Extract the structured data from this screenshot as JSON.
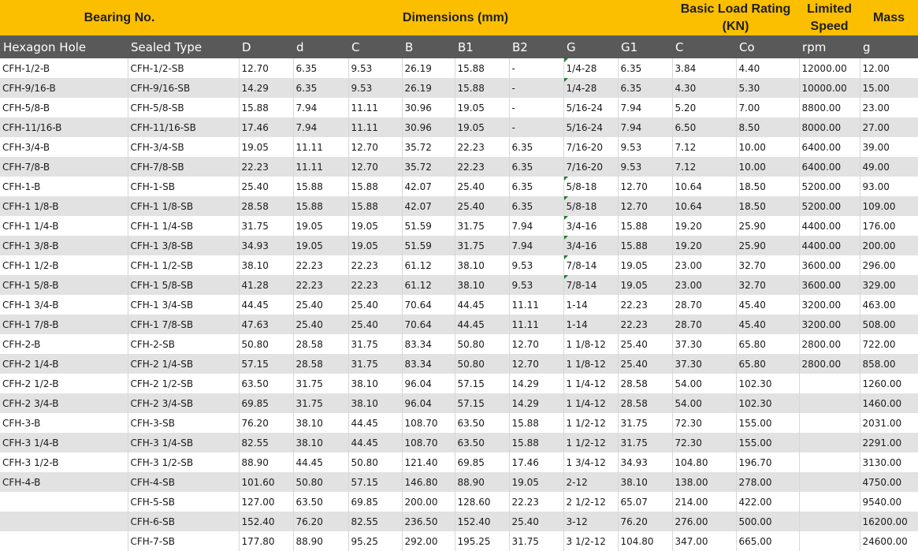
{
  "header": {
    "bearing_no": "Bearing No.",
    "dimensions": "Dimensions (mm)",
    "load_rating": "Basic Load Rating (KN)",
    "limited_speed": "Limited Speed",
    "mass": "Mass"
  },
  "columns": [
    "Hexagon Hole",
    "Sealed Type",
    "D",
    "d",
    "C",
    "B",
    "B1",
    "B2",
    "G",
    "G1",
    "C",
    "Co",
    "rpm",
    "g"
  ],
  "rows": [
    [
      "CFH-1/2-B",
      "CFH-1/2-SB",
      "12.70",
      "6.35",
      "9.53",
      "26.19",
      "15.88",
      "-",
      "1/4-28",
      "6.35",
      "3.84",
      "4.40",
      "12000.00",
      "12.00"
    ],
    [
      "CFH-9/16-B",
      "CFH-9/16-SB",
      "14.29",
      "6.35",
      "9.53",
      "26.19",
      "15.88",
      "-",
      "1/4-28",
      "6.35",
      "4.30",
      "5.30",
      "10000.00",
      "15.00"
    ],
    [
      "CFH-5/8-B",
      "CFH-5/8-SB",
      "15.88",
      "7.94",
      "11.11",
      "30.96",
      "19.05",
      "-",
      "5/16-24",
      "7.94",
      "5.20",
      "7.00",
      "8800.00",
      "23.00"
    ],
    [
      "CFH-11/16-B",
      "CFH-11/16-SB",
      "17.46",
      "7.94",
      "11.11",
      "30.96",
      "19.05",
      "-",
      "5/16-24",
      "7.94",
      "6.50",
      "8.50",
      "8000.00",
      "27.00"
    ],
    [
      "CFH-3/4-B",
      "CFH-3/4-SB",
      "19.05",
      "11.11",
      "12.70",
      "35.72",
      "22.23",
      "6.35",
      "7/16-20",
      "9.53",
      "7.12",
      "10.00",
      "6400.00",
      "39.00"
    ],
    [
      "CFH-7/8-B",
      "CFH-7/8-SB",
      "22.23",
      "11.11",
      "12.70",
      "35.72",
      "22.23",
      "6.35",
      "7/16-20",
      "9.53",
      "7.12",
      "10.00",
      "6400.00",
      "49.00"
    ],
    [
      "CFH-1-B",
      "CFH-1-SB",
      "25.40",
      "15.88",
      "15.88",
      "42.07",
      "25.40",
      "6.35",
      "5/8-18",
      "12.70",
      "10.64",
      "18.50",
      "5200.00",
      "93.00"
    ],
    [
      "CFH-1 1/8-B",
      "CFH-1 1/8-SB",
      "28.58",
      "15.88",
      "15.88",
      "42.07",
      "25.40",
      "6.35",
      "5/8-18",
      "12.70",
      "10.64",
      "18.50",
      "5200.00",
      "109.00"
    ],
    [
      "CFH-1 1/4-B",
      "CFH-1 1/4-SB",
      "31.75",
      "19.05",
      "19.05",
      "51.59",
      "31.75",
      "7.94",
      "3/4-16",
      "15.88",
      "19.20",
      "25.90",
      "4400.00",
      "176.00"
    ],
    [
      "CFH-1 3/8-B",
      "CFH-1 3/8-SB",
      "34.93",
      "19.05",
      "19.05",
      "51.59",
      "31.75",
      "7.94",
      "3/4-16",
      "15.88",
      "19.20",
      "25.90",
      "4400.00",
      "200.00"
    ],
    [
      "CFH-1 1/2-B",
      "CFH-1 1/2-SB",
      "38.10",
      "22.23",
      "22.23",
      "61.12",
      "38.10",
      "9.53",
      "7/8-14",
      "19.05",
      "23.00",
      "32.70",
      "3600.00",
      "296.00"
    ],
    [
      "CFH-1 5/8-B",
      "CFH-1 5/8-SB",
      "41.28",
      "22.23",
      "22.23",
      "61.12",
      "38.10",
      "9.53",
      "7/8-14",
      "19.05",
      "23.00",
      "32.70",
      "3600.00",
      "329.00"
    ],
    [
      "CFH-1 3/4-B",
      "CFH-1 3/4-SB",
      "44.45",
      "25.40",
      "25.40",
      "70.64",
      "44.45",
      "11.11",
      "1-14",
      "22.23",
      "28.70",
      "45.40",
      "3200.00",
      "463.00"
    ],
    [
      "CFH-1 7/8-B",
      "CFH-1 7/8-SB",
      "47.63",
      "25.40",
      "25.40",
      "70.64",
      "44.45",
      "11.11",
      "1-14",
      "22.23",
      "28.70",
      "45.40",
      "3200.00",
      "508.00"
    ],
    [
      "CFH-2-B",
      "CFH-2-SB",
      "50.80",
      "28.58",
      "31.75",
      "83.34",
      "50.80",
      "12.70",
      "1 1/8-12",
      "25.40",
      "37.30",
      "65.80",
      "2800.00",
      "722.00"
    ],
    [
      "CFH-2 1/4-B",
      "CFH-2 1/4-SB",
      "57.15",
      "28.58",
      "31.75",
      "83.34",
      "50.80",
      "12.70",
      "1 1/8-12",
      "25.40",
      "37.30",
      "65.80",
      "2800.00",
      "858.00"
    ],
    [
      "CFH-2 1/2-B",
      "CFH-2 1/2-SB",
      "63.50",
      "31.75",
      "38.10",
      "96.04",
      "57.15",
      "14.29",
      "1 1/4-12",
      "28.58",
      "54.00",
      "102.30",
      "",
      "1260.00"
    ],
    [
      "CFH-2 3/4-B",
      "CFH-2 3/4-SB",
      "69.85",
      "31.75",
      "38.10",
      "96.04",
      "57.15",
      "14.29",
      "1 1/4-12",
      "28.58",
      "54.00",
      "102.30",
      "",
      "1460.00"
    ],
    [
      "CFH-3-B",
      "CFH-3-SB",
      "76.20",
      "38.10",
      "44.45",
      "108.70",
      "63.50",
      "15.88",
      "1 1/2-12",
      "31.75",
      "72.30",
      "155.00",
      "",
      "2031.00"
    ],
    [
      "CFH-3 1/4-B",
      "CFH-3 1/4-SB",
      "82.55",
      "38.10",
      "44.45",
      "108.70",
      "63.50",
      "15.88",
      "1 1/2-12",
      "31.75",
      "72.30",
      "155.00",
      "",
      "2291.00"
    ],
    [
      "CFH-3 1/2-B",
      "CFH-3 1/2-SB",
      "88.90",
      "44.45",
      "50.80",
      "121.40",
      "69.85",
      "17.46",
      "1 3/4-12",
      "34.93",
      "104.80",
      "196.70",
      "",
      "3130.00"
    ],
    [
      "CFH-4-B",
      "CFH-4-SB",
      "101.60",
      "50.80",
      "57.15",
      "146.80",
      "88.90",
      "19.05",
      "2-12",
      "38.10",
      "138.00",
      "278.00",
      "",
      "4750.00"
    ],
    [
      "",
      "CFH-5-SB",
      "127.00",
      "63.50",
      "69.85",
      "200.00",
      "128.60",
      "22.23",
      "2 1/2-12",
      "65.07",
      "214.00",
      "422.00",
      "",
      "9540.00"
    ],
    [
      "",
      "CFH-6-SB",
      "152.40",
      "76.20",
      "82.55",
      "236.50",
      "152.40",
      "25.40",
      "3-12",
      "76.20",
      "276.00",
      "500.00",
      "",
      "16200.00"
    ],
    [
      "",
      "CFH-7-SB",
      "177.80",
      "88.90",
      "95.25",
      "292.00",
      "195.25",
      "31.75",
      "3 1/2-12",
      "104.80",
      "347.00",
      "665.00",
      "",
      "24600.00"
    ]
  ]
}
